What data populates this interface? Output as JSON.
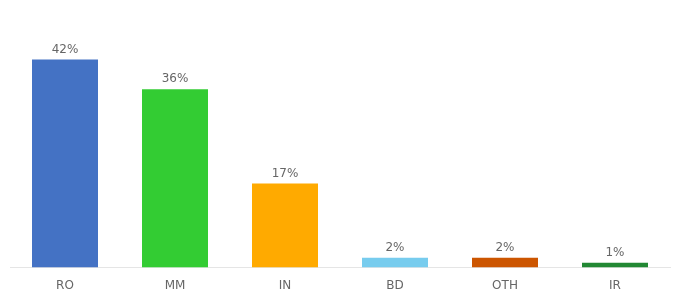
{
  "chart_data": {
    "type": "bar",
    "categories": [
      "RO",
      "MM",
      "IN",
      "BD",
      "OTH",
      "IR"
    ],
    "values": [
      42,
      36,
      17,
      2,
      2,
      1
    ],
    "value_labels": [
      "42%",
      "36%",
      "17%",
      "2%",
      "2%",
      "1%"
    ],
    "colors": [
      "#4472c4",
      "#33cc33",
      "#ffaa00",
      "#77ccee",
      "#cc5500",
      "#228833"
    ],
    "ylim": [
      0,
      50
    ],
    "grid": false,
    "data_labels": true,
    "tick_labels": "x"
  }
}
